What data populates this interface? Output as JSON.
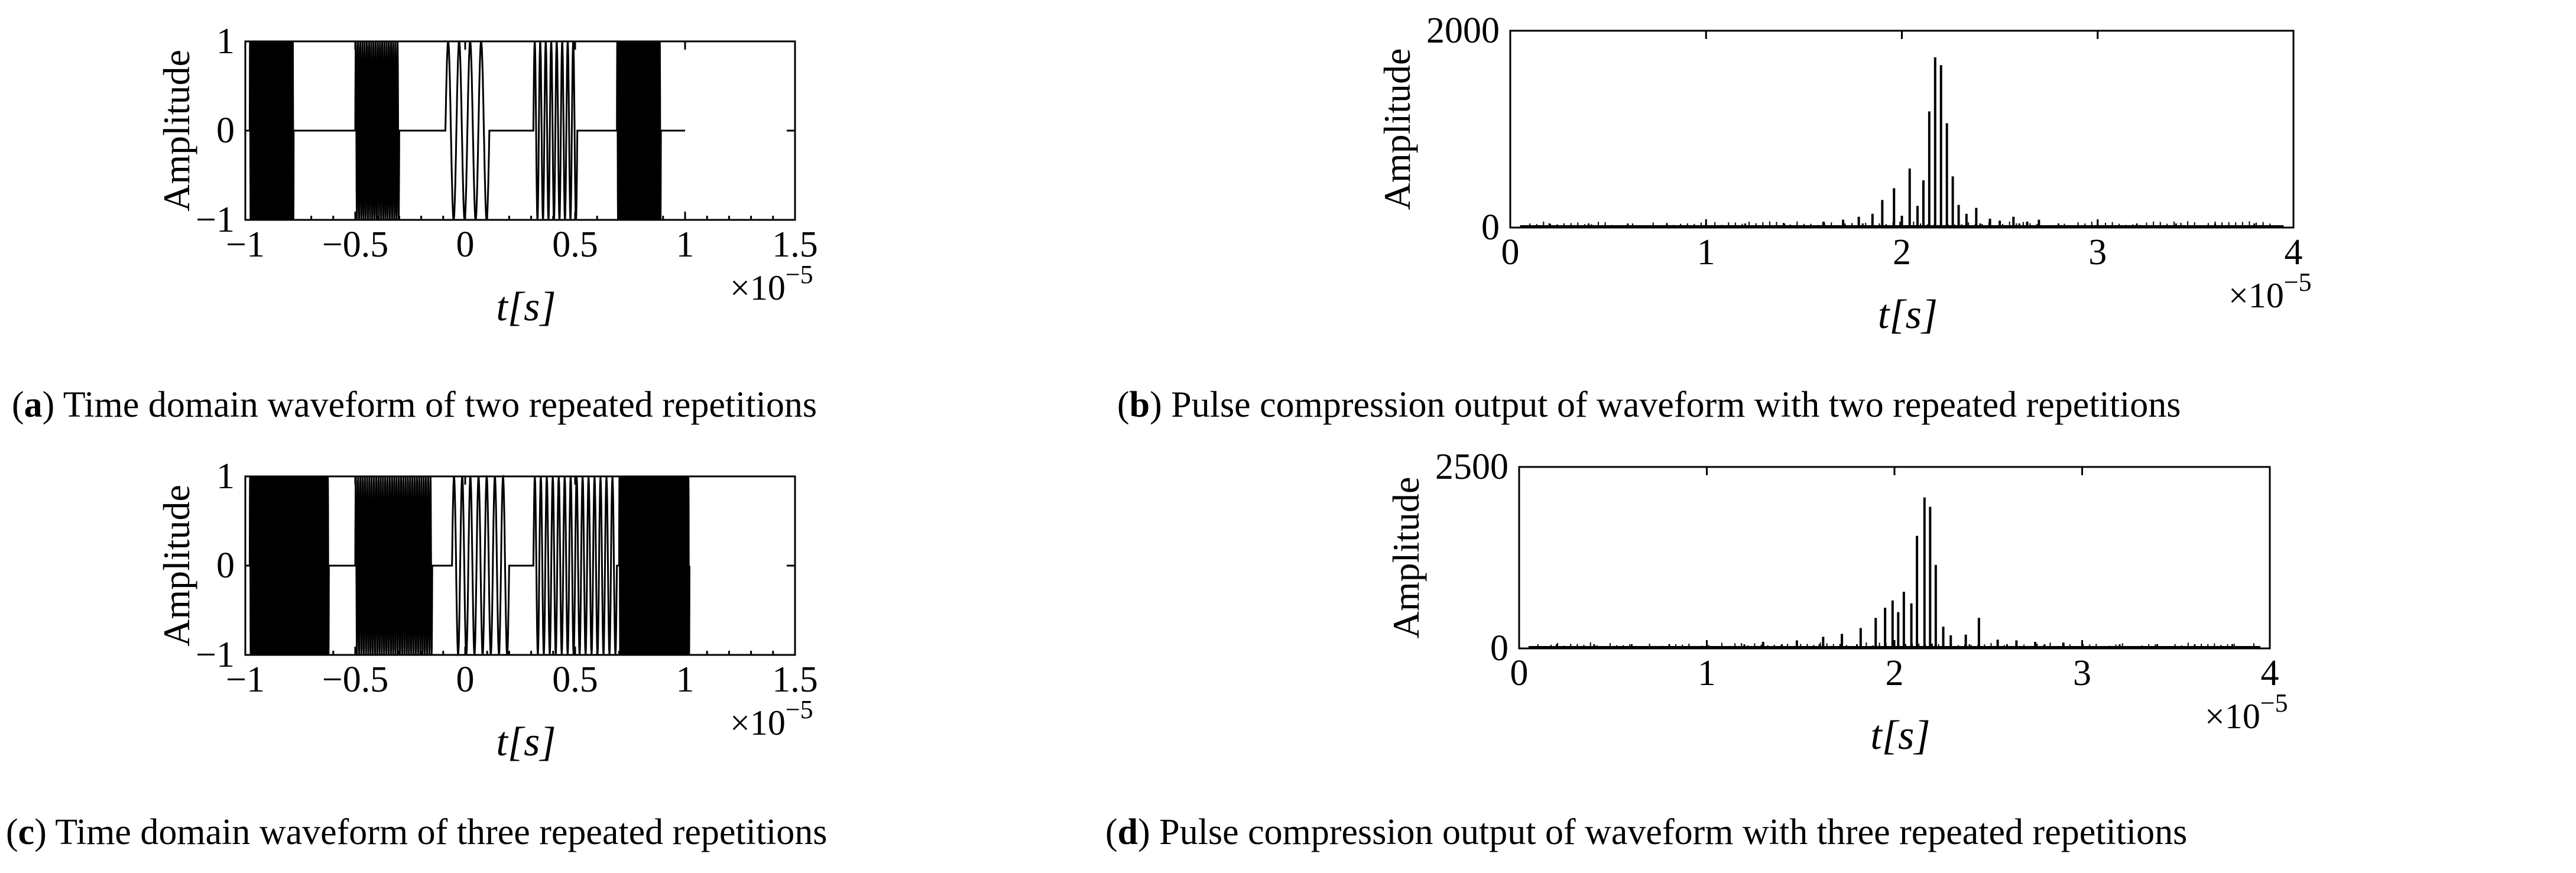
{
  "chart_data": [
    {
      "id": "a",
      "type": "line",
      "caption_label": "a",
      "caption_text": "Time domain waveform of two repeated repetitions",
      "ylabel": "Amplitude",
      "xlabel": "t[s]",
      "x_multiplier": "×10",
      "x_exponent": "−5",
      "xlim": [
        -1,
        1.5
      ],
      "ylim": [
        -1,
        1
      ],
      "xticks": [
        "−1",
        "−0.5",
        "0",
        "0.5",
        "1",
        "1.5"
      ],
      "yticks": [
        "−1",
        "0",
        "1"
      ],
      "segments": [
        {
          "start": -0.98,
          "end": -0.78,
          "cycles": 38,
          "amplitude": 1
        },
        {
          "start": -0.5,
          "end": -0.3,
          "cycles": 20,
          "amplitude": 1
        },
        {
          "start": -0.09,
          "end": 0.11,
          "cycles": 4,
          "amplitude": 1
        },
        {
          "start": 0.31,
          "end": 0.51,
          "cycles": 8,
          "amplitude": 1
        },
        {
          "start": 0.69,
          "end": 0.89,
          "cycles": 30,
          "amplitude": 1
        }
      ],
      "line_end": 1.0,
      "grid": false
    },
    {
      "id": "b",
      "type": "bar",
      "caption_label": "b",
      "caption_text": "Pulse compression output of waveform with two repeated repetitions",
      "ylabel": "Amplitude",
      "xlabel": "t[s]",
      "x_multiplier": "×10",
      "x_exponent": "−5",
      "xlim": [
        0,
        4
      ],
      "ylim": [
        0,
        2000
      ],
      "xticks": [
        "0",
        "1",
        "2",
        "3",
        "4"
      ],
      "yticks": [
        "0",
        "2000"
      ],
      "peaks": [
        {
          "x": 1.6,
          "y": 60
        },
        {
          "x": 1.7,
          "y": 80
        },
        {
          "x": 1.78,
          "y": 110
        },
        {
          "x": 1.85,
          "y": 140
        },
        {
          "x": 1.9,
          "y": 280
        },
        {
          "x": 1.96,
          "y": 400
        },
        {
          "x": 2.0,
          "y": 120
        },
        {
          "x": 2.04,
          "y": 600
        },
        {
          "x": 2.08,
          "y": 220
        },
        {
          "x": 2.11,
          "y": 480
        },
        {
          "x": 2.14,
          "y": 1180
        },
        {
          "x": 2.17,
          "y": 1730
        },
        {
          "x": 2.2,
          "y": 1650
        },
        {
          "x": 2.23,
          "y": 1060
        },
        {
          "x": 2.26,
          "y": 520
        },
        {
          "x": 2.29,
          "y": 230
        },
        {
          "x": 2.33,
          "y": 140
        },
        {
          "x": 2.38,
          "y": 200
        },
        {
          "x": 2.45,
          "y": 90
        },
        {
          "x": 2.5,
          "y": 70
        },
        {
          "x": 2.57,
          "y": 110
        },
        {
          "x": 2.64,
          "y": 60
        },
        {
          "x": 2.7,
          "y": 80
        }
      ],
      "noise_floor": 15,
      "grid": false
    },
    {
      "id": "c",
      "type": "line",
      "caption_label": "c",
      "caption_text": "Time domain waveform of three repeated repetitions",
      "ylabel": "Amplitude",
      "xlabel": "t[s]",
      "x_multiplier": "×10",
      "x_exponent": "−5",
      "xlim": [
        -1,
        1.5
      ],
      "ylim": [
        -1,
        1
      ],
      "xticks": [
        "−1",
        "−0.5",
        "0",
        "0.5",
        "1",
        "1.5"
      ],
      "yticks": [
        "−1",
        "0",
        "1"
      ],
      "segments": [
        {
          "start": -0.98,
          "end": -0.62,
          "cycles": 60,
          "amplitude": 1
        },
        {
          "start": -0.5,
          "end": -0.15,
          "cycles": 34,
          "amplitude": 1
        },
        {
          "start": -0.06,
          "end": 0.2,
          "cycles": 7,
          "amplitude": 1
        },
        {
          "start": 0.31,
          "end": 0.69,
          "cycles": 14,
          "amplitude": 1
        },
        {
          "start": 0.7,
          "end": 1.02,
          "cycles": 50,
          "amplitude": 1
        }
      ],
      "line_end": 1.02,
      "grid": false
    },
    {
      "id": "d",
      "type": "bar",
      "caption_label": "d",
      "caption_text": "Pulse compression output of waveform with three repeated repetitions",
      "ylabel": "Amplitude",
      "xlabel": "t[s]",
      "x_multiplier": "×10",
      "x_exponent": "−5",
      "xlim": [
        0,
        4
      ],
      "ylim": [
        0,
        2500
      ],
      "xticks": [
        "0",
        "1",
        "2",
        "3",
        "4"
      ],
      "yticks": [
        "0",
        "2500"
      ],
      "peaks": [
        {
          "x": 1.3,
          "y": 90
        },
        {
          "x": 1.48,
          "y": 110
        },
        {
          "x": 1.62,
          "y": 160
        },
        {
          "x": 1.72,
          "y": 200
        },
        {
          "x": 1.82,
          "y": 280
        },
        {
          "x": 1.9,
          "y": 420
        },
        {
          "x": 1.95,
          "y": 560
        },
        {
          "x": 1.99,
          "y": 660
        },
        {
          "x": 2.02,
          "y": 500
        },
        {
          "x": 2.05,
          "y": 780
        },
        {
          "x": 2.09,
          "y": 620
        },
        {
          "x": 2.12,
          "y": 1550
        },
        {
          "x": 2.16,
          "y": 2080
        },
        {
          "x": 2.19,
          "y": 1950
        },
        {
          "x": 2.22,
          "y": 1150
        },
        {
          "x": 2.26,
          "y": 300
        },
        {
          "x": 2.3,
          "y": 180
        },
        {
          "x": 2.38,
          "y": 190
        },
        {
          "x": 2.45,
          "y": 420
        },
        {
          "x": 2.55,
          "y": 120
        },
        {
          "x": 2.65,
          "y": 110
        },
        {
          "x": 2.75,
          "y": 90
        },
        {
          "x": 2.9,
          "y": 80
        }
      ],
      "noise_floor": 20,
      "grid": false
    }
  ]
}
